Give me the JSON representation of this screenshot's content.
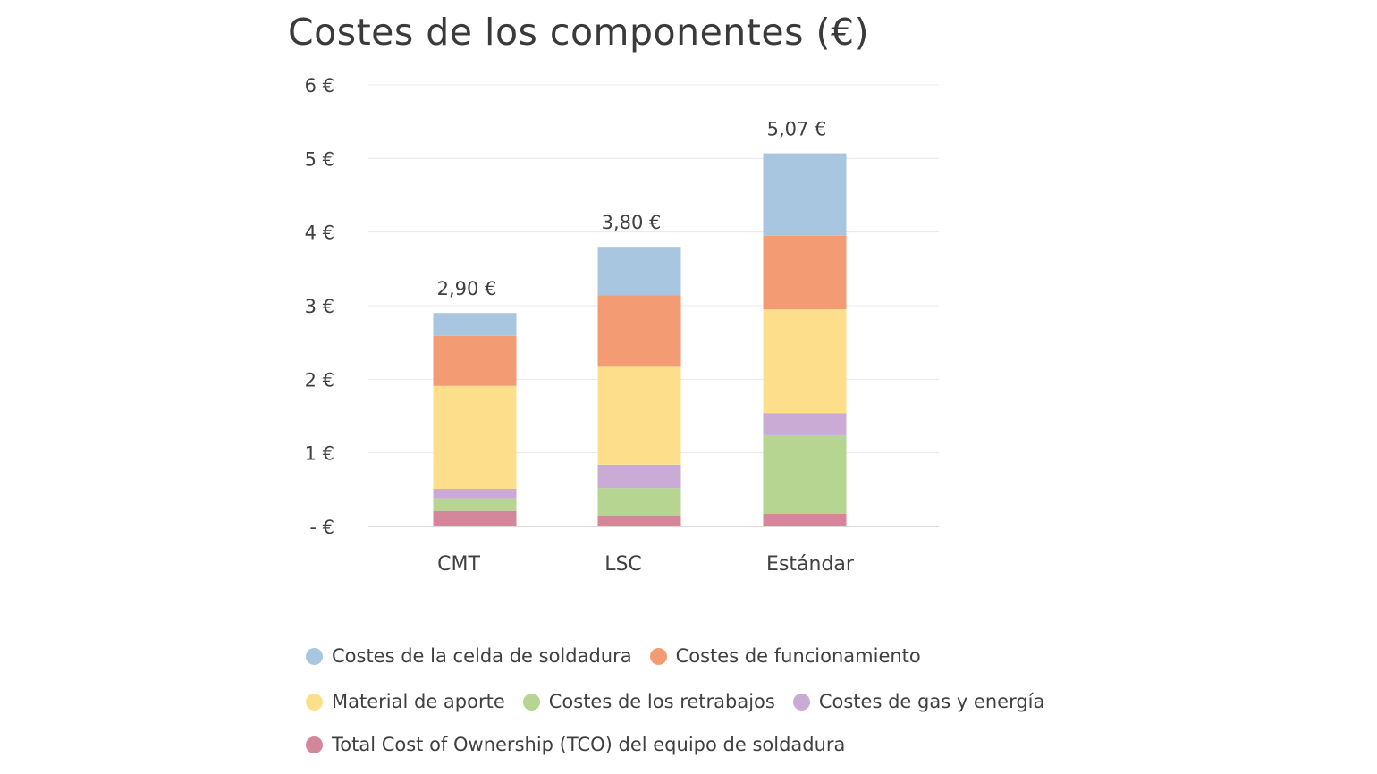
{
  "chart_data": {
    "type": "bar",
    "stacked": true,
    "title": "Costes de los componentes (€)",
    "xlabel": "",
    "ylabel": "",
    "ylim": [
      0,
      6
    ],
    "y_ticks": [
      {
        "value": 0,
        "label": "- €"
      },
      {
        "value": 1,
        "label": "1 €"
      },
      {
        "value": 2,
        "label": "2 €"
      },
      {
        "value": 3,
        "label": "3 €"
      },
      {
        "value": 4,
        "label": "4 €"
      },
      {
        "value": 5,
        "label": "5 €"
      },
      {
        "value": 6,
        "label": "6 €"
      }
    ],
    "grid": true,
    "legend_position": "bottom",
    "categories": [
      "CMT",
      "LSC",
      "Estándar"
    ],
    "totals": [
      2.9,
      3.8,
      5.07
    ],
    "total_labels": [
      "2,90 €",
      "3,80 €",
      "5,07 €"
    ],
    "series": [
      {
        "name": "Total Cost of Ownership (TCO) del equipo de soldadura",
        "color": "#d4879b",
        "values": [
          0.21,
          0.15,
          0.17
        ]
      },
      {
        "name": "Costes de los retrabajos",
        "color": "#b5d590",
        "values": [
          0.17,
          0.37,
          1.07
        ]
      },
      {
        "name": "Costes de gas y energía",
        "color": "#c9abd5",
        "values": [
          0.13,
          0.32,
          0.3
        ]
      },
      {
        "name": "Material de aporte",
        "color": "#fddf8b",
        "values": [
          1.4,
          1.33,
          1.41
        ]
      },
      {
        "name": "Costes de funcionamiento",
        "color": "#f39b73",
        "values": [
          0.68,
          0.97,
          1.0
        ]
      },
      {
        "name": "Costes de la celda de soldadura",
        "color": "#a9c6e0",
        "values": [
          0.31,
          0.66,
          1.12
        ]
      }
    ]
  }
}
